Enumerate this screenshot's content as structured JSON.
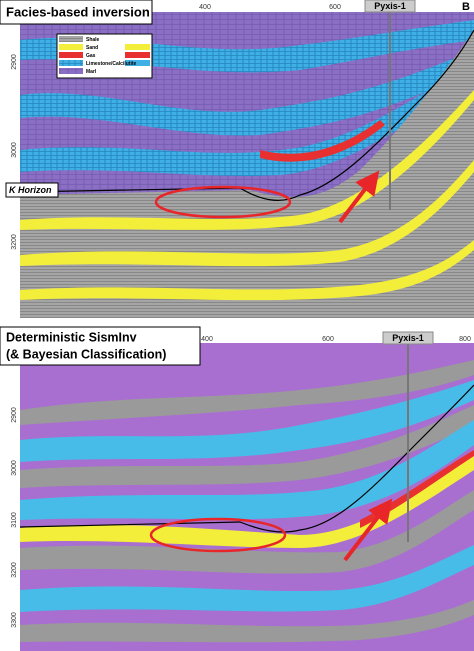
{
  "top_panel": {
    "title": "Facies-based inversion",
    "well": "Pyxis-1",
    "corner_label": "B",
    "horizon": "K Horizon",
    "x_ticks": [
      "400",
      "600"
    ],
    "y_ticks": [
      "2900",
      "3000",
      "3200"
    ],
    "legend": [
      "Shale",
      "Sand",
      "Gas",
      "Limestone/Calcilutite",
      "Marl"
    ]
  },
  "bottom_panel": {
    "title_lines": [
      "Deterministic SismInv",
      "(& Bayesian Classification)"
    ],
    "well": "Pyxis-1",
    "x_ticks": [
      "400",
      "600",
      "800"
    ],
    "y_ticks": [
      "2900",
      "3000",
      "3100",
      "3200",
      "3300"
    ]
  }
}
